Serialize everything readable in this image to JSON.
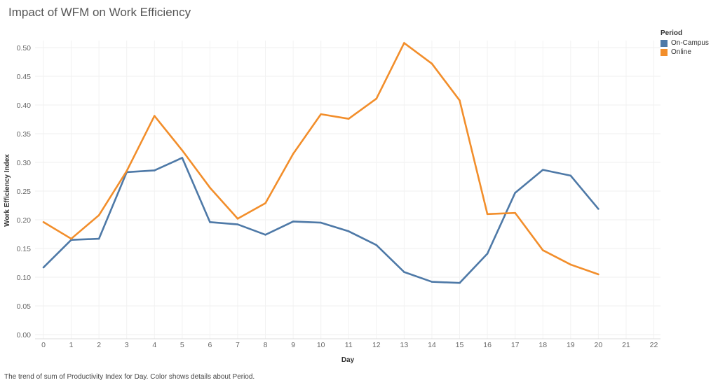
{
  "chart_data": {
    "type": "line",
    "title": "Impact of WFM on Work Efficiency",
    "xlabel": "Day",
    "ylabel": "Work Efficiency Index",
    "xlim": [
      0,
      22
    ],
    "ylim": [
      0,
      0.5
    ],
    "x_ticks": [
      "0",
      "1",
      "2",
      "3",
      "4",
      "5",
      "6",
      "7",
      "8",
      "9",
      "10",
      "11",
      "12",
      "13",
      "14",
      "15",
      "16",
      "17",
      "18",
      "19",
      "20",
      "21",
      "22"
    ],
    "y_ticks": [
      "0.00",
      "0.05",
      "0.10",
      "0.15",
      "0.20",
      "0.25",
      "0.30",
      "0.35",
      "0.40",
      "0.45",
      "0.50"
    ],
    "grid": true,
    "legend": {
      "title": "Period",
      "position": "top-right"
    },
    "x": [
      0,
      1,
      2,
      3,
      4,
      5,
      6,
      7,
      8,
      9,
      10,
      11,
      12,
      13,
      14,
      15,
      16,
      17,
      18,
      19,
      20
    ],
    "series": [
      {
        "name": "On-Campus",
        "color": "#4e79a7",
        "values": [
          0.117,
          0.165,
          0.167,
          0.283,
          0.286,
          0.308,
          0.196,
          0.192,
          0.174,
          0.197,
          0.195,
          0.18,
          0.156,
          0.109,
          0.092,
          0.09,
          0.141,
          0.247,
          0.287,
          0.277,
          0.219
        ]
      },
      {
        "name": "Online",
        "color": "#f28e2b",
        "values": [
          0.196,
          0.167,
          0.208,
          0.285,
          0.381,
          0.321,
          0.256,
          0.202,
          0.229,
          0.315,
          0.384,
          0.376,
          0.411,
          0.508,
          0.472,
          0.408,
          0.21,
          0.212,
          0.147,
          0.122,
          0.105
        ]
      }
    ],
    "footer": "The trend of sum of Productivity Index for Day.  Color shows details about Period."
  }
}
